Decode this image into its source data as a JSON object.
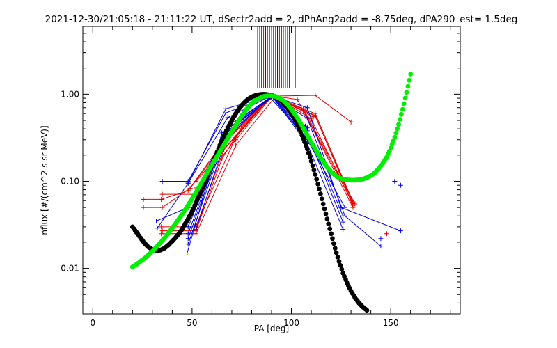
{
  "chart_data": {
    "type": "scatter",
    "title": "2021-12-30/21:05:18 - 21:11:22 UT, dSectr2add = 2, dPhAng2add = -8.75deg, dPA290_est=    1.5deg",
    "xlabel": "PA [deg]",
    "ylabel": "nflux [#/(cm^2 s sr MeV)]",
    "xlim": [
      -5,
      185
    ],
    "ylim": [
      0.003,
      6.0
    ],
    "yscale": "log",
    "grid": false,
    "x_ticks": [
      0,
      50,
      100,
      150
    ],
    "x_tick_labels": [
      "0",
      "50",
      "100",
      "150"
    ],
    "y_ticks": [
      0.01,
      0.1,
      1.0
    ],
    "y_tick_labels": [
      "0.01",
      "0.10",
      "1.00"
    ],
    "colors": {
      "red": "#e00000",
      "blue": "#0000e0",
      "black": "#000000",
      "green": "#00ee00",
      "axes": "#000000"
    },
    "vertical_markers": {
      "y_range": [
        1.18,
        6.0
      ],
      "red_x": [
        84,
        86,
        88,
        90,
        92,
        94,
        96,
        98,
        102
      ],
      "blue_x": [
        83,
        85,
        87,
        89,
        91,
        93,
        95,
        97,
        99
      ]
    },
    "red_traces": [
      [
        [
          25.5,
          0.062
        ],
        [
          34.5,
          0.062
        ],
        [
          48,
          0.078
        ],
        [
          65,
          0.27
        ],
        [
          90,
          0.97
        ],
        [
          112,
          0.56
        ],
        [
          130,
          0.064
        ]
      ],
      [
        [
          25.5,
          0.05
        ],
        [
          35,
          0.05
        ],
        [
          49,
          0.083
        ],
        [
          67,
          0.29
        ],
        [
          90,
          0.94
        ],
        [
          112,
          0.57
        ],
        [
          131,
          0.053
        ]
      ],
      [
        [
          35,
          0.071
        ],
        [
          52,
          0.071
        ],
        [
          62,
          0.19
        ],
        [
          72,
          0.39
        ],
        [
          90,
          0.96
        ],
        [
          106,
          0.65
        ],
        [
          131,
          0.05
        ]
      ],
      [
        [
          35,
          0.027
        ],
        [
          52,
          0.027
        ],
        [
          65,
          0.18
        ],
        [
          75,
          0.42
        ],
        [
          91,
          0.97
        ],
        [
          110,
          0.52
        ],
        [
          130,
          0.06
        ]
      ],
      [
        [
          34.5,
          0.03
        ],
        [
          52,
          0.03
        ],
        [
          66,
          0.23
        ],
        [
          90,
          0.95
        ],
        [
          112,
          0.97
        ],
        [
          130,
          0.48
        ]
      ],
      [
        [
          34.5,
          0.025
        ],
        [
          52,
          0.025
        ],
        [
          72,
          0.26
        ],
        [
          92,
          0.94
        ],
        [
          106,
          0.68
        ],
        [
          132,
          0.055
        ]
      ],
      [
        [
          52,
          0.084
        ],
        [
          72,
          0.3
        ],
        [
          90,
          0.93
        ],
        [
          112,
          0.6
        ],
        [
          131,
          0.058
        ]
      ],
      [
        [
          52,
          0.031
        ],
        [
          72,
          0.32
        ],
        [
          90,
          0.96
        ],
        [
          103,
          0.87
        ],
        [
          131,
          0.056
        ]
      ],
      [
        [
          52,
          0.1
        ],
        [
          65,
          0.22
        ],
        [
          90,
          0.98
        ],
        [
          111,
          0.55
        ]
      ]
    ],
    "blue_traces": [
      [
        [
          32.5,
          0.029
        ],
        [
          48,
          0.095
        ],
        [
          67,
          0.68
        ],
        [
          90,
          0.96
        ],
        [
          108,
          0.7
        ],
        [
          125,
          0.05
        ],
        [
          155,
          0.027
        ]
      ],
      [
        [
          35,
          0.1
        ],
        [
          48,
          0.1
        ],
        [
          67,
          0.61
        ],
        [
          90,
          0.95
        ],
        [
          108,
          0.53
        ],
        [
          127,
          0.04
        ],
        [
          145,
          0.018
        ]
      ],
      [
        [
          32,
          0.035
        ],
        [
          48,
          0.05
        ],
        [
          66,
          0.34
        ],
        [
          90,
          0.94
        ],
        [
          108,
          0.35
        ],
        [
          126,
          0.034
        ]
      ],
      [
        [
          48,
          0.095
        ],
        [
          68,
          0.54
        ],
        [
          90,
          0.96
        ],
        [
          108,
          0.27
        ],
        [
          126,
          0.028
        ]
      ],
      [
        [
          47.5,
          0.015
        ],
        [
          65,
          0.36
        ],
        [
          91,
          0.93
        ],
        [
          108,
          0.3
        ],
        [
          127,
          0.05
        ]
      ],
      [
        [
          48,
          0.019
        ],
        [
          66,
          0.29
        ],
        [
          89,
          0.93
        ],
        [
          107,
          0.33
        ]
      ],
      [
        [
          48,
          0.025
        ],
        [
          68,
          0.43
        ],
        [
          90,
          0.93
        ],
        [
          108,
          0.38
        ]
      ],
      [
        [
          48,
          0.022
        ],
        [
          66,
          0.31
        ],
        [
          90,
          0.96
        ],
        [
          107,
          0.31
        ]
      ],
      [
        [
          52,
          0.028
        ],
        [
          69,
          0.42
        ],
        [
          90,
          0.95
        ],
        [
          108,
          0.41
        ]
      ],
      [
        [
          48,
          0.03
        ],
        [
          68,
          0.38
        ],
        [
          90,
          0.94
        ],
        [
          107,
          0.43
        ],
        [
          126,
          0.04
        ]
      ]
    ],
    "blue_isolated": [
      [
        145,
        0.022
      ],
      [
        152,
        0.1
      ],
      [
        155,
        0.09
      ]
    ],
    "red_isolated": [
      [
        148,
        0.025
      ]
    ],
    "black_curve": {
      "x": [
        20,
        22,
        24,
        26,
        28,
        30,
        32,
        34,
        36,
        38,
        40,
        42,
        44,
        46,
        48,
        50,
        52,
        54,
        56,
        58,
        60,
        62,
        64,
        66,
        68,
        70,
        72,
        74,
        76,
        78,
        80,
        82,
        84,
        86,
        88,
        90,
        92,
        94,
        96,
        98,
        100,
        102,
        104,
        106,
        108,
        110,
        112,
        114,
        116,
        118,
        120,
        122,
        124,
        126,
        128,
        130,
        132,
        134,
        136,
        138
      ],
      "y": [
        0.03,
        0.026,
        0.0225,
        0.0195,
        0.0176,
        0.0165,
        0.016,
        0.0162,
        0.017,
        0.0185,
        0.0205,
        0.023,
        0.026,
        0.031,
        0.037,
        0.045,
        0.057,
        0.072,
        0.092,
        0.12,
        0.155,
        0.2,
        0.26,
        0.33,
        0.41,
        0.5,
        0.6,
        0.7,
        0.79,
        0.87,
        0.93,
        0.97,
        0.99,
        1.0,
        0.99,
        0.97,
        0.93,
        0.87,
        0.79,
        0.7,
        0.6,
        0.5,
        0.4,
        0.31,
        0.235,
        0.17,
        0.12,
        0.082,
        0.055,
        0.037,
        0.025,
        0.017,
        0.012,
        0.0088,
        0.0068,
        0.0055,
        0.0046,
        0.004,
        0.0036,
        0.0033
      ]
    },
    "green_curve": {
      "x": [
        20,
        22,
        24,
        26,
        28,
        30,
        32,
        34,
        36,
        38,
        40,
        42,
        44,
        46,
        48,
        50,
        52,
        54,
        56,
        58,
        60,
        62,
        64,
        66,
        68,
        70,
        72,
        74,
        76,
        78,
        80,
        82,
        84,
        86,
        88,
        90,
        92,
        94,
        96,
        98,
        100,
        102,
        104,
        106,
        108,
        110,
        112,
        114,
        116,
        118,
        120,
        122,
        124,
        126,
        128,
        130,
        132,
        134,
        136,
        138,
        140,
        142,
        144,
        146,
        148,
        150,
        152,
        154,
        156,
        158,
        160
      ],
      "y": [
        0.0104,
        0.0111,
        0.012,
        0.013,
        0.0142,
        0.0157,
        0.0175,
        0.0196,
        0.0222,
        0.0253,
        0.029,
        0.0335,
        0.0388,
        0.045,
        0.053,
        0.063,
        0.075,
        0.09,
        0.108,
        0.13,
        0.155,
        0.185,
        0.22,
        0.26,
        0.31,
        0.37,
        0.44,
        0.52,
        0.61,
        0.7,
        0.78,
        0.85,
        0.9,
        0.94,
        0.96,
        0.96,
        0.94,
        0.9,
        0.84,
        0.76,
        0.67,
        0.58,
        0.49,
        0.41,
        0.34,
        0.28,
        0.235,
        0.198,
        0.168,
        0.145,
        0.128,
        0.117,
        0.11,
        0.106,
        0.104,
        0.103,
        0.103,
        0.104,
        0.106,
        0.11,
        0.116,
        0.125,
        0.14,
        0.16,
        0.19,
        0.24,
        0.32,
        0.45,
        0.67,
        1.05,
        1.7
      ]
    }
  }
}
